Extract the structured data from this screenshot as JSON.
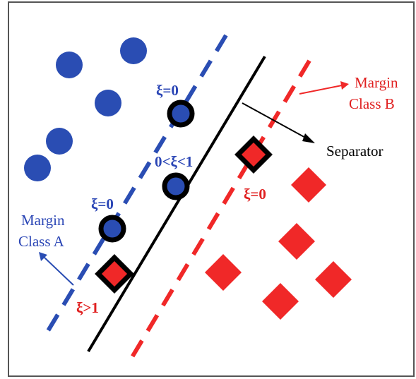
{
  "colors": {
    "class_a": "#2a4db3",
    "class_b": "#f02828",
    "margin_a_line": "#2a4db3",
    "margin_b_line": "#f02828",
    "separator": "#000000",
    "frame": "#555555"
  },
  "labels": {
    "margin_a_line1": "Margin",
    "margin_a_line2": "Class A",
    "margin_b_line1": "Margin",
    "margin_b_line2": "Class B",
    "separator": "Separator",
    "xi_zero_top": "ξ=0",
    "xi_between": "0<ξ<1",
    "xi_zero_left": "ξ=0",
    "xi_zero_red": "ξ=0",
    "xi_greater_one": "ξ>1"
  }
}
